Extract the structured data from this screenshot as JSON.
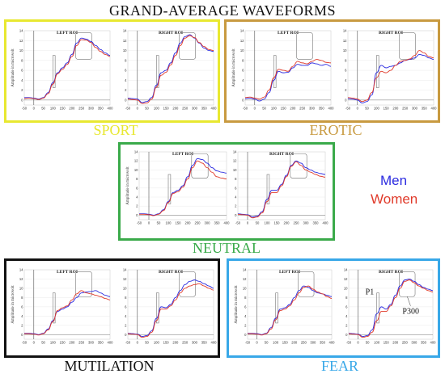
{
  "title": "GRAND-AVERAGE WAVEFORMS",
  "legend": [
    {
      "label": "Men",
      "color": "#2a2ae0"
    },
    {
      "label": "Women",
      "color": "#e03a2a"
    }
  ],
  "conditions": [
    {
      "key": "sport",
      "label": "SPORT",
      "color": "#e8e830"
    },
    {
      "key": "erotic",
      "label": "EROTIC",
      "color": "#c89a40"
    },
    {
      "key": "neutral",
      "label": "NEUTRAL",
      "color": "#3aaa4a"
    },
    {
      "key": "mutilation",
      "label": "MUTILATION",
      "color": "#111111"
    },
    {
      "key": "fear",
      "label": "FEAR",
      "color": "#38a8e8"
    }
  ],
  "chart_data": [
    {
      "condition": "SPORT",
      "title": "LEFT ROI",
      "type": "line",
      "xlim": [
        -50,
        400
      ],
      "ylim": [
        0,
        14
      ],
      "ylabel": "Amplitude in microvolt",
      "x": [
        -50,
        -25,
        0,
        25,
        50,
        75,
        100,
        125,
        150,
        175,
        200,
        225,
        250,
        275,
        300,
        325,
        350,
        375,
        400
      ],
      "series": [
        {
          "name": "Men",
          "values": [
            0.5,
            0.5,
            0.4,
            0.2,
            0.5,
            1.5,
            3.5,
            5.5,
            6.5,
            7.5,
            9.2,
            11.5,
            12.5,
            12.3,
            11.8,
            11.0,
            10.2,
            9.5,
            9.0
          ]
        },
        {
          "name": "Women",
          "values": [
            0.3,
            0.4,
            0.3,
            0.1,
            0.4,
            1.3,
            3.2,
            5.3,
            6.2,
            7.2,
            8.8,
            11.0,
            12.2,
            12.1,
            11.6,
            10.6,
            9.8,
            9.2,
            8.8
          ]
        }
      ]
    },
    {
      "condition": "SPORT",
      "title": "RIGHT ROI",
      "type": "line",
      "xlim": [
        -50,
        400
      ],
      "ylim": [
        0,
        14
      ],
      "ylabel": "",
      "x": [
        -50,
        -25,
        0,
        25,
        50,
        75,
        100,
        125,
        150,
        175,
        200,
        225,
        250,
        275,
        300,
        325,
        350,
        375,
        400
      ],
      "series": [
        {
          "name": "Men",
          "values": [
            0.4,
            0.3,
            0.2,
            -0.5,
            -0.3,
            0.5,
            3.0,
            5.5,
            6.0,
            7.5,
            9.5,
            11.5,
            12.8,
            13.2,
            12.5,
            11.5,
            10.5,
            10.0,
            9.8
          ]
        },
        {
          "name": "Women",
          "values": [
            0.2,
            0.1,
            0.0,
            -0.7,
            -0.6,
            0.2,
            2.6,
            5.0,
            5.6,
            7.1,
            9.0,
            11.0,
            12.5,
            13.0,
            12.6,
            11.6,
            10.8,
            10.2,
            10.0
          ]
        }
      ]
    },
    {
      "condition": "EROTIC",
      "title": "LEFT ROI",
      "type": "line",
      "xlim": [
        -50,
        400
      ],
      "ylim": [
        0,
        14
      ],
      "ylabel": "Amplitude in microvolt",
      "x": [
        -50,
        -25,
        0,
        25,
        50,
        75,
        100,
        125,
        150,
        175,
        200,
        225,
        250,
        275,
        300,
        325,
        350,
        375,
        400
      ],
      "series": [
        {
          "name": "Men",
          "values": [
            0.3,
            0.4,
            0.2,
            -0.2,
            0.2,
            1.5,
            4.0,
            5.8,
            5.5,
            5.6,
            6.5,
            7.2,
            7.0,
            7.0,
            7.5,
            7.3,
            7.0,
            7.2,
            6.8
          ]
        },
        {
          "name": "Women",
          "values": [
            0.5,
            0.6,
            0.4,
            0.2,
            0.6,
            2.0,
            4.5,
            6.2,
            6.0,
            5.8,
            6.8,
            7.8,
            7.5,
            7.3,
            7.8,
            8.2,
            8.0,
            7.6,
            7.5
          ]
        }
      ]
    },
    {
      "condition": "EROTIC",
      "title": "RIGHT ROI",
      "type": "line",
      "xlim": [
        -50,
        400
      ],
      "ylim": [
        0,
        14
      ],
      "ylabel": "",
      "x": [
        -50,
        -25,
        0,
        25,
        50,
        75,
        100,
        125,
        150,
        175,
        200,
        225,
        250,
        275,
        300,
        325,
        350,
        375,
        400
      ],
      "series": [
        {
          "name": "Men",
          "values": [
            0.3,
            0.2,
            0.0,
            -0.6,
            -0.3,
            1.0,
            5.5,
            7.0,
            6.5,
            6.8,
            7.0,
            7.5,
            8.0,
            8.2,
            8.5,
            9.2,
            9.0,
            8.5,
            8.2
          ]
        },
        {
          "name": "Women",
          "values": [
            0.5,
            0.4,
            0.2,
            -0.3,
            0.0,
            1.5,
            4.5,
            5.8,
            5.5,
            6.0,
            7.0,
            7.8,
            8.0,
            8.3,
            9.0,
            10.0,
            9.5,
            8.8,
            8.5
          ]
        }
      ]
    },
    {
      "condition": "NEUTRAL",
      "title": "LEFT ROI",
      "type": "line",
      "xlim": [
        -50,
        400
      ],
      "ylim": [
        0,
        14
      ],
      "ylabel": "Amplitude in microvolt",
      "x": [
        -50,
        -25,
        0,
        25,
        50,
        75,
        100,
        125,
        150,
        175,
        200,
        225,
        250,
        275,
        300,
        325,
        350,
        375,
        400
      ],
      "series": [
        {
          "name": "Men",
          "values": [
            0.3,
            0.3,
            0.2,
            0.0,
            0.3,
            1.2,
            3.0,
            5.0,
            5.5,
            6.5,
            8.5,
            11.0,
            12.5,
            12.3,
            11.5,
            10.5,
            9.8,
            9.5,
            9.3
          ]
        },
        {
          "name": "Women",
          "values": [
            0.2,
            0.2,
            0.1,
            -0.1,
            0.2,
            1.0,
            2.8,
            4.8,
            5.2,
            6.2,
            8.0,
            10.5,
            12.0,
            11.5,
            10.5,
            9.5,
            8.5,
            8.2,
            8.0
          ]
        }
      ]
    },
    {
      "condition": "NEUTRAL",
      "title": "RIGHT ROI",
      "type": "line",
      "xlim": [
        -50,
        400
      ],
      "ylim": [
        0,
        14
      ],
      "ylabel": "",
      "x": [
        -50,
        -25,
        0,
        25,
        50,
        75,
        100,
        125,
        150,
        175,
        200,
        225,
        250,
        275,
        300,
        325,
        350,
        375,
        400
      ],
      "series": [
        {
          "name": "Men",
          "values": [
            0.3,
            0.2,
            0.1,
            -0.4,
            -0.2,
            0.8,
            3.5,
            5.5,
            5.5,
            6.8,
            8.8,
            11.0,
            12.0,
            11.5,
            10.5,
            10.0,
            9.5,
            9.2,
            9.0
          ]
        },
        {
          "name": "Women",
          "values": [
            0.2,
            0.1,
            0.0,
            -0.6,
            -0.4,
            0.5,
            3.0,
            5.0,
            5.0,
            6.5,
            8.5,
            10.8,
            11.8,
            11.0,
            10.0,
            9.5,
            9.0,
            8.6,
            8.4
          ]
        }
      ]
    },
    {
      "condition": "MUTILATION",
      "title": "LEFT ROI",
      "type": "line",
      "xlim": [
        -50,
        400
      ],
      "ylim": [
        0,
        14
      ],
      "ylabel": "Amplitude in microvolt",
      "x": [
        -50,
        -25,
        0,
        25,
        50,
        75,
        100,
        125,
        150,
        175,
        200,
        225,
        250,
        275,
        300,
        325,
        350,
        375,
        400
      ],
      "series": [
        {
          "name": "Men",
          "values": [
            0.3,
            0.3,
            0.2,
            0.0,
            0.3,
            1.2,
            3.0,
            5.0,
            5.5,
            6.0,
            7.0,
            8.0,
            9.0,
            9.2,
            9.3,
            9.5,
            9.0,
            8.5,
            8.2
          ]
        },
        {
          "name": "Women",
          "values": [
            0.2,
            0.2,
            0.1,
            -0.1,
            0.2,
            1.0,
            2.8,
            5.2,
            5.8,
            6.2,
            7.5,
            8.8,
            9.5,
            9.0,
            8.8,
            8.5,
            8.2,
            7.8,
            7.5
          ]
        }
      ]
    },
    {
      "condition": "MUTILATION",
      "title": "RIGHT ROI",
      "type": "line",
      "xlim": [
        -50,
        400
      ],
      "ylim": [
        0,
        14
      ],
      "ylabel": "",
      "x": [
        -50,
        -25,
        0,
        25,
        50,
        75,
        100,
        125,
        150,
        175,
        200,
        225,
        250,
        275,
        300,
        325,
        350,
        375,
        400
      ],
      "series": [
        {
          "name": "Men",
          "values": [
            0.3,
            0.2,
            0.1,
            -0.4,
            -0.2,
            0.8,
            3.5,
            6.0,
            5.8,
            6.5,
            8.0,
            9.5,
            10.8,
            11.5,
            11.8,
            11.5,
            11.0,
            10.5,
            10.0
          ]
        },
        {
          "name": "Women",
          "values": [
            0.2,
            0.1,
            0.0,
            -0.6,
            -0.4,
            0.5,
            3.0,
            5.5,
            5.5,
            6.2,
            7.5,
            9.0,
            10.0,
            10.5,
            10.8,
            11.0,
            10.5,
            10.0,
            9.6
          ]
        }
      ]
    },
    {
      "condition": "FEAR",
      "title": "LEFT ROI",
      "type": "line",
      "xlim": [
        -50,
        400
      ],
      "ylim": [
        0,
        14
      ],
      "ylabel": "Amplitude in microvolt",
      "x": [
        -50,
        -25,
        0,
        25,
        50,
        75,
        100,
        125,
        150,
        175,
        200,
        225,
        250,
        275,
        300,
        325,
        350,
        375,
        400
      ],
      "series": [
        {
          "name": "Men",
          "values": [
            0.3,
            0.3,
            0.2,
            0.0,
            0.3,
            1.5,
            3.5,
            5.5,
            5.8,
            6.5,
            8.0,
            9.5,
            10.5,
            10.2,
            9.5,
            9.0,
            8.8,
            8.5,
            8.2
          ]
        },
        {
          "name": "Women",
          "values": [
            0.2,
            0.2,
            0.1,
            -0.1,
            0.2,
            1.2,
            3.2,
            5.2,
            5.5,
            6.2,
            7.5,
            9.0,
            10.2,
            10.5,
            9.8,
            9.2,
            8.8,
            8.2,
            7.8
          ]
        }
      ]
    },
    {
      "condition": "FEAR",
      "title": "RIGHT ROI",
      "type": "line",
      "xlim": [
        -50,
        400
      ],
      "ylim": [
        0,
        14
      ],
      "ylabel": "",
      "x": [
        -50,
        -25,
        0,
        25,
        50,
        75,
        100,
        125,
        150,
        175,
        200,
        225,
        250,
        275,
        300,
        325,
        350,
        375,
        400
      ],
      "series": [
        {
          "name": "Men",
          "values": [
            0.3,
            0.2,
            0.1,
            -0.4,
            -0.2,
            1.0,
            4.5,
            6.0,
            5.5,
            6.5,
            8.5,
            10.5,
            11.8,
            12.0,
            11.5,
            10.8,
            10.2,
            9.8,
            9.5
          ]
        },
        {
          "name": "Women",
          "values": [
            0.2,
            0.1,
            0.0,
            -0.6,
            -0.4,
            0.5,
            3.0,
            5.0,
            5.0,
            6.2,
            8.0,
            10.0,
            11.5,
            11.8,
            11.2,
            10.5,
            10.0,
            9.5,
            9.2
          ]
        }
      ],
      "annotations": [
        "P1",
        "P300"
      ]
    }
  ],
  "chart_axes": {
    "x_ticks": [
      "-50",
      "0",
      "50",
      "100",
      "150",
      "200",
      "250",
      "300",
      "350",
      "400"
    ],
    "y_ticks": [
      "0",
      "2",
      "4",
      "6",
      "8",
      "10",
      "12",
      "14"
    ]
  }
}
